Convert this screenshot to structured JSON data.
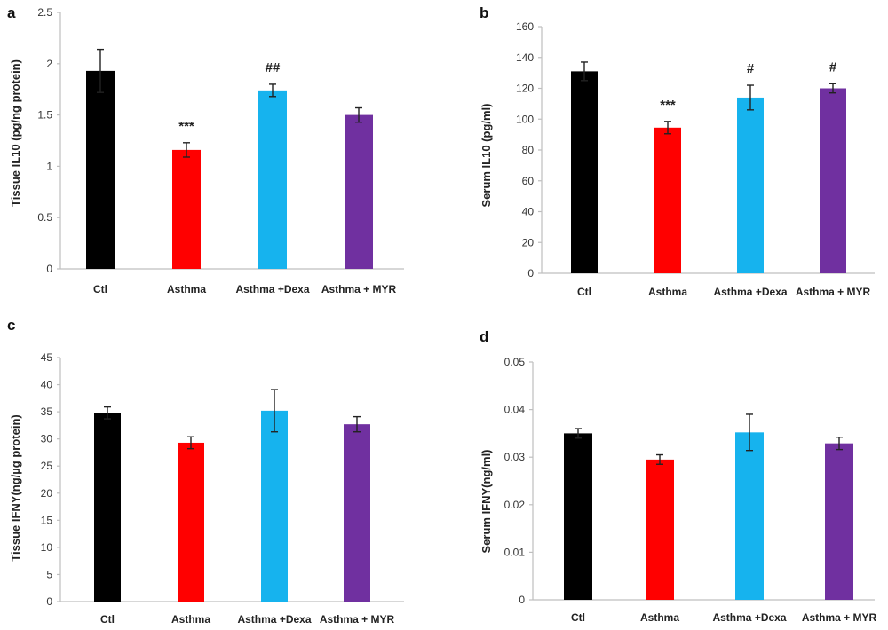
{
  "categories": [
    "Ctl",
    "Asthma",
    "Asthma +Dexa",
    "Asthma + MYR"
  ],
  "colors": {
    "Ctl": "#000000",
    "Asthma": "#ff0000",
    "Asthma +Dexa": "#16b3ee",
    "Asthma + MYR": "#7030a0"
  },
  "chart_data": [
    {
      "panel": "a",
      "type": "bar",
      "ylabel": "Tissue IL10  (pg/ng protein)",
      "categories": [
        "Ctl",
        "Asthma",
        "Asthma +Dexa",
        "Asthma + MYR"
      ],
      "values": [
        1.93,
        1.16,
        1.74,
        1.5
      ],
      "errors": [
        0.21,
        0.07,
        0.06,
        0.07
      ],
      "annotations": [
        "",
        "***",
        "##",
        ""
      ],
      "ylim": [
        0,
        2.5
      ],
      "yticks": [
        "0",
        "0.5",
        "1",
        "1.5",
        "2",
        "2.5"
      ]
    },
    {
      "panel": "b",
      "type": "bar",
      "ylabel": "Serum IL10  (pg/ml)",
      "categories": [
        "Ctl",
        "Asthma",
        "Asthma +Dexa",
        "Asthma + MYR"
      ],
      "values": [
        131,
        94.5,
        114,
        120
      ],
      "errors": [
        6,
        4,
        8,
        3
      ],
      "annotations": [
        "",
        "***",
        "#",
        "#"
      ],
      "ylim": [
        0,
        160
      ],
      "yticks": [
        "0",
        "20",
        "40",
        "60",
        "80",
        "100",
        "120",
        "140",
        "160"
      ]
    },
    {
      "panel": "c",
      "type": "bar",
      "ylabel": "Tissue IFNY(ng/µg protein)",
      "categories": [
        "Ctl",
        "Asthma",
        "Asthma +Dexa",
        "Asthma + MYR"
      ],
      "values": [
        34.8,
        29.3,
        35.2,
        32.7
      ],
      "errors": [
        1.1,
        1.1,
        3.9,
        1.4
      ],
      "annotations": [
        "",
        "",
        "",
        ""
      ],
      "ylim": [
        0,
        45
      ],
      "yticks": [
        "0",
        "5",
        "10",
        "15",
        "20",
        "25",
        "30",
        "35",
        "40",
        "45"
      ]
    },
    {
      "panel": "d",
      "type": "bar",
      "ylabel": "Serum IFNY(ng/ml)",
      "categories": [
        "Ctl",
        "Asthma",
        "Asthma +Dexa",
        "Asthma + MYR"
      ],
      "values": [
        0.035,
        0.0295,
        0.0352,
        0.0329
      ],
      "errors": [
        0.001,
        0.001,
        0.0038,
        0.0013
      ],
      "annotations": [
        "",
        "",
        "",
        ""
      ],
      "ylim": [
        0,
        0.05
      ],
      "yticks": [
        "0",
        "0.01",
        "0.02",
        "0.03",
        "0.04",
        "0.05"
      ]
    }
  ]
}
